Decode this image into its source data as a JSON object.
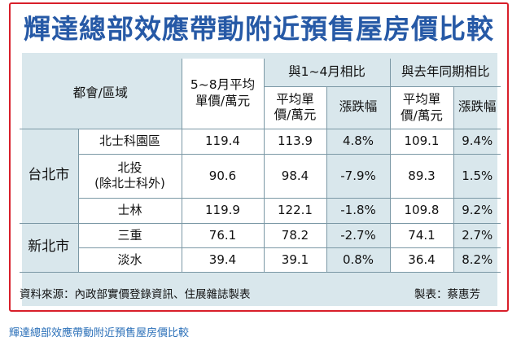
{
  "title": "輝達總部效應帶動附近預售屋房價比較",
  "table": {
    "header": {
      "region": "都會/區域",
      "avg_may_aug": "5~8月平均\n單價/萬元",
      "vs_jan_apr": "與1~4月相比",
      "vs_last_year": "與去年同期相比",
      "avg_price": "平均單\n價/萬元",
      "change": "漲跌幅",
      "avg_price_ly": "平均單價/萬元",
      "change_ly": "漲跌幅"
    },
    "groups": [
      {
        "city": "台北市",
        "rows": [
          {
            "area": "北士科園區",
            "avg": "119.4",
            "prev_avg": "113.9",
            "prev_chg": "4.8%",
            "ly_avg": "109.1",
            "ly_chg": "9.4%"
          },
          {
            "area": "北投\n(除北士科外)",
            "avg": "90.6",
            "prev_avg": "98.4",
            "prev_chg": "-7.9%",
            "ly_avg": "89.3",
            "ly_chg": "1.5%"
          },
          {
            "area": "士林",
            "avg": "119.9",
            "prev_avg": "122.1",
            "prev_chg": "-1.8%",
            "ly_avg": "109.8",
            "ly_chg": "9.2%"
          }
        ]
      },
      {
        "city": "新北市",
        "rows": [
          {
            "area": "三重",
            "avg": "76.1",
            "prev_avg": "78.2",
            "prev_chg": "-2.7%",
            "ly_avg": "74.1",
            "ly_chg": "2.7%"
          },
          {
            "area": "淡水",
            "avg": "39.4",
            "prev_avg": "39.1",
            "prev_chg": "0.8%",
            "ly_avg": "36.4",
            "ly_chg": "8.2%"
          }
        ]
      }
    ]
  },
  "source": "資料來源：內政部實價登錄資訊、住展雜誌製表",
  "credit": "製表：蔡惠芳",
  "caption": "輝達總部效應帶動附近預售屋房價比較"
}
